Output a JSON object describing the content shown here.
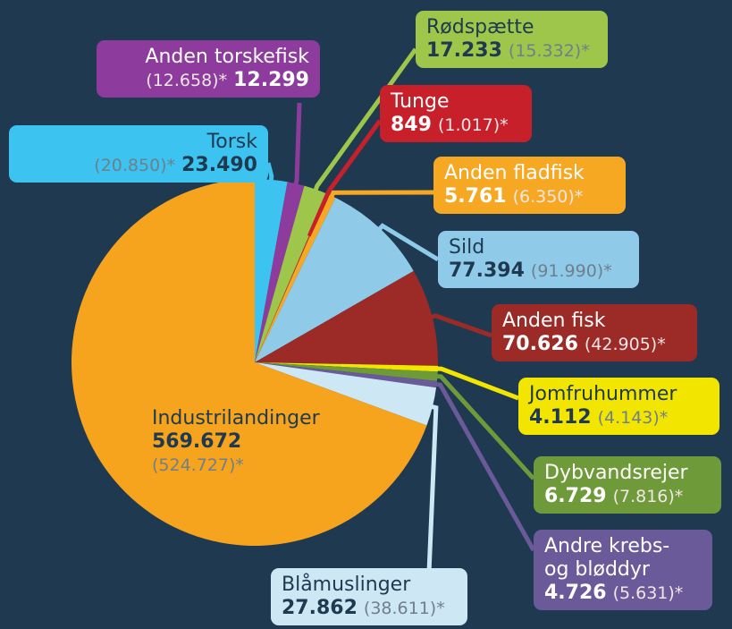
{
  "chart_data": {
    "type": "pie",
    "categories": [
      "Torsk",
      "Anden torskefisk",
      "Rødspætte",
      "Tunge",
      "Anden fladfisk",
      "Sild",
      "Anden fisk",
      "Jomfruhummer",
      "Dybvandsrejer",
      "Andre krebs-\nog bløddyr",
      "Blåmuslinger",
      "Industrilandinger"
    ],
    "values": [
      23490,
      12299,
      17233,
      849,
      5761,
      77394,
      70626,
      4112,
      6729,
      4726,
      27862,
      569672
    ],
    "value_labels": [
      "23.490",
      "12.299",
      "17.233",
      "849",
      "5.761",
      "77.394",
      "70.626",
      "4.112",
      "6.729",
      "4.726",
      "27.862",
      "569.672"
    ],
    "previous_labels": [
      "(20.850)*",
      "(12.658)*",
      "(15.332)*",
      "(1.017)*",
      "(6.350)*",
      "(91.990)*",
      "(42.905)*",
      "(4.143)*",
      "(7.816)*",
      "(5.631)*",
      "(38.611)*",
      "(524.727)*"
    ],
    "colors": [
      "#3cc3ef",
      "#8e3b9e",
      "#9dc64a",
      "#c8202a",
      "#f7a823",
      "#8fcbe8",
      "#9c2a26",
      "#f2e600",
      "#6f9a3a",
      "#6a5a99",
      "#cde8f4",
      "#f6a41e"
    ]
  }
}
